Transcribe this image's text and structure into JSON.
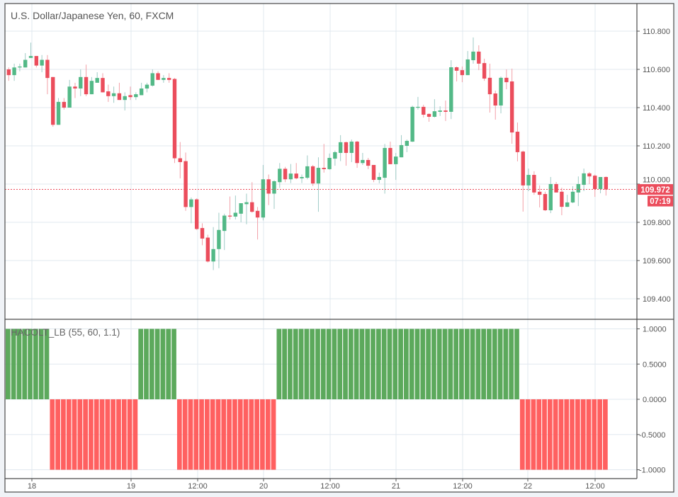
{
  "header": {
    "title": "U.S. Dollar/Japanese Yen, 60, FXCM"
  },
  "indicator": {
    "title": "HACOLT_LB (55, 60, 1.1)"
  },
  "price_label": {
    "last": "109.972",
    "countdown": "07:19"
  },
  "colors": {
    "up": "#53b987",
    "down": "#eb4d5c",
    "up_wick": "#9fcbc6",
    "down_wick": "#f2a0a8",
    "ind_up": "#4ea24e",
    "ind_down": "#ff5252",
    "grid": "#e1e8ef",
    "price_line": "#eb4d5c"
  },
  "chart_data": [
    {
      "type": "candlestick",
      "title": "U.S. Dollar/Japanese Yen, 60, FXCM",
      "ylim": [
        109.3,
        110.85
      ],
      "y_ticks": [
        "110.800",
        "110.600",
        "110.400",
        "110.200",
        "110.000",
        "109.800",
        "109.600",
        "109.400"
      ],
      "x_ticks": [
        "18",
        "19",
        "12:00",
        "20",
        "12:00",
        "21",
        "12:00",
        "22",
        "12:00"
      ],
      "grid": true,
      "last_price": 109.972,
      "ohlc": [
        [
          110.6,
          110.61,
          110.54,
          110.57
        ],
        [
          110.57,
          110.63,
          110.54,
          110.61
        ],
        [
          110.61,
          110.63,
          110.59,
          110.615
        ],
        [
          110.61,
          110.685,
          110.61,
          110.65
        ],
        [
          110.66,
          110.74,
          110.66,
          110.67
        ],
        [
          110.67,
          110.67,
          110.61,
          110.62
        ],
        [
          110.62,
          110.675,
          110.585,
          110.65
        ],
        [
          110.65,
          110.675,
          110.47,
          110.555
        ],
        [
          110.56,
          110.56,
          110.3,
          110.31
        ],
        [
          110.31,
          110.45,
          110.31,
          110.43
        ],
        [
          110.43,
          110.45,
          110.39,
          110.4
        ],
        [
          110.4,
          110.545,
          110.4,
          110.51
        ],
        [
          110.51,
          110.53,
          110.45,
          110.5
        ],
        [
          110.5,
          110.6,
          110.46,
          110.56
        ],
        [
          110.56,
          110.625,
          110.46,
          110.47
        ],
        [
          110.47,
          110.56,
          110.47,
          110.54
        ],
        [
          110.53,
          110.585,
          110.53,
          110.555
        ],
        [
          110.555,
          110.58,
          110.48,
          110.48
        ],
        [
          110.485,
          110.52,
          110.43,
          110.46
        ],
        [
          110.46,
          110.51,
          110.425,
          110.475
        ],
        [
          110.475,
          110.53,
          110.44,
          110.44
        ],
        [
          110.44,
          110.48,
          110.385,
          110.46
        ],
        [
          110.465,
          110.51,
          110.44,
          110.455
        ],
        [
          110.455,
          110.48,
          110.44,
          110.47
        ],
        [
          110.465,
          110.53,
          110.465,
          110.5
        ],
        [
          110.5,
          110.53,
          110.48,
          110.52
        ],
        [
          110.515,
          110.6,
          110.51,
          110.58
        ],
        [
          110.58,
          110.59,
          110.545,
          110.545
        ],
        [
          110.545,
          110.57,
          110.53,
          110.555
        ],
        [
          110.555,
          110.58,
          110.53,
          110.545
        ],
        [
          110.55,
          110.555,
          110.11,
          110.135
        ],
        [
          110.135,
          110.22,
          110.03,
          110.115
        ],
        [
          110.12,
          110.165,
          109.86,
          109.88
        ],
        [
          109.88,
          109.93,
          109.795,
          109.92
        ],
        [
          109.92,
          109.925,
          109.76,
          109.765
        ],
        [
          109.77,
          109.795,
          109.68,
          109.715
        ],
        [
          109.72,
          109.735,
          109.59,
          109.595
        ],
        [
          109.595,
          109.775,
          109.55,
          109.66
        ],
        [
          109.66,
          109.85,
          109.56,
          109.76
        ],
        [
          109.755,
          109.845,
          109.655,
          109.835
        ],
        [
          109.835,
          109.935,
          109.815,
          109.83
        ],
        [
          109.83,
          109.94,
          109.815,
          109.85
        ],
        [
          109.845,
          109.9,
          109.8,
          109.9
        ],
        [
          109.895,
          109.95,
          109.79,
          109.905
        ],
        [
          109.905,
          110.01,
          109.85,
          109.855
        ],
        [
          109.86,
          109.88,
          109.71,
          109.825
        ],
        [
          109.825,
          110.1,
          109.81,
          110.025
        ],
        [
          110.025,
          110.05,
          109.89,
          109.95
        ],
        [
          109.95,
          110.02,
          109.87,
          110.015
        ],
        [
          110.01,
          110.11,
          109.98,
          110.08
        ],
        [
          110.08,
          110.09,
          110.01,
          110.025
        ],
        [
          110.025,
          110.105,
          110.005,
          110.055
        ],
        [
          110.055,
          110.11,
          110.025,
          110.03
        ],
        [
          110.03,
          110.05,
          110.005,
          110.037
        ],
        [
          110.033,
          110.15,
          110.025,
          110.093
        ],
        [
          110.093,
          110.1,
          109.99,
          110.003
        ],
        [
          110.003,
          110.14,
          109.855,
          110.085
        ],
        [
          110.085,
          110.21,
          110.06,
          110.078
        ],
        [
          110.078,
          110.16,
          110.075,
          110.137
        ],
        [
          110.133,
          110.175,
          110.096,
          110.167
        ],
        [
          110.163,
          110.256,
          110.12,
          110.219
        ],
        [
          110.219,
          110.222,
          110.096,
          110.163
        ],
        [
          110.163,
          110.233,
          110.115,
          110.222
        ],
        [
          110.222,
          110.226,
          110.085,
          110.11
        ],
        [
          110.11,
          110.163,
          110.1,
          110.126
        ],
        [
          110.126,
          110.137,
          110.078,
          110.096
        ],
        [
          110.1,
          110.1,
          110.01,
          110.022
        ],
        [
          110.022,
          110.06,
          110.004,
          110.037
        ],
        [
          110.033,
          110.21,
          109.95,
          110.189
        ],
        [
          110.189,
          110.222,
          110.104,
          110.104
        ],
        [
          110.104,
          110.163,
          110.022,
          110.144
        ],
        [
          110.14,
          110.256,
          110.14,
          110.204
        ],
        [
          110.2,
          110.233,
          110.167,
          110.226
        ],
        [
          110.222,
          110.41,
          110.22,
          110.404
        ],
        [
          110.4,
          110.456,
          110.39,
          110.404
        ],
        [
          110.404,
          110.415,
          110.348,
          110.363
        ],
        [
          110.367,
          110.37,
          110.326,
          110.352
        ],
        [
          110.352,
          110.444,
          110.348,
          110.381
        ],
        [
          110.378,
          110.407,
          110.356,
          110.385
        ],
        [
          110.385,
          110.437,
          110.33,
          110.378
        ],
        [
          110.378,
          110.648,
          110.34,
          110.611
        ],
        [
          110.611,
          110.615,
          110.537,
          110.593
        ],
        [
          110.596,
          110.615,
          110.533,
          110.57
        ],
        [
          110.57,
          110.696,
          110.57,
          110.652
        ],
        [
          110.648,
          110.767,
          110.63,
          110.693
        ],
        [
          110.693,
          110.726,
          110.596,
          110.63
        ],
        [
          110.633,
          110.656,
          110.54,
          110.552
        ],
        [
          110.556,
          110.63,
          110.374,
          110.47
        ],
        [
          110.474,
          110.489,
          110.337,
          110.411
        ],
        [
          110.411,
          110.563,
          110.37,
          110.556
        ],
        [
          110.556,
          110.6,
          110.496,
          110.533
        ],
        [
          110.537,
          110.604,
          110.211,
          110.27
        ],
        [
          110.274,
          110.322,
          110.119,
          110.167
        ],
        [
          110.17,
          110.175,
          109.856,
          109.993
        ],
        [
          109.993,
          110.081,
          109.963,
          110.048
        ],
        [
          110.048,
          110.067,
          109.944,
          109.956
        ],
        [
          109.96,
          109.993,
          109.878,
          109.944
        ],
        [
          109.948,
          109.96,
          109.859,
          109.863
        ],
        [
          109.863,
          110.037,
          109.848,
          110.0
        ],
        [
          110.0,
          110.011,
          109.956,
          109.956
        ],
        [
          109.96,
          109.981,
          109.837,
          109.881
        ],
        [
          109.881,
          109.944,
          109.88,
          109.904
        ],
        [
          109.904,
          109.989,
          109.9,
          109.96
        ],
        [
          109.956,
          110.04,
          109.885,
          110.0
        ],
        [
          109.996,
          110.081,
          109.963,
          110.056
        ],
        [
          110.056,
          110.063,
          110.0,
          110.04
        ],
        [
          110.044,
          110.05,
          109.933,
          109.974
        ],
        [
          109.974,
          110.037,
          109.952,
          110.037
        ],
        [
          110.037,
          110.04,
          109.94,
          109.972
        ]
      ]
    },
    {
      "type": "bar",
      "title": "HACOLT_LB (55, 60, 1.1)",
      "ylim": [
        -1.1,
        1.1
      ],
      "y_ticks": [
        "1.0000",
        "0.5000",
        "0.0000",
        "-0.5000",
        "-1.0000"
      ],
      "segments": [
        {
          "value": 1,
          "count": 8
        },
        {
          "value": -1,
          "count": 16
        },
        {
          "value": 1,
          "count": 7
        },
        {
          "value": -1,
          "count": 18
        },
        {
          "value": 1,
          "count": 44
        },
        {
          "value": -1,
          "count": 16
        }
      ]
    }
  ]
}
